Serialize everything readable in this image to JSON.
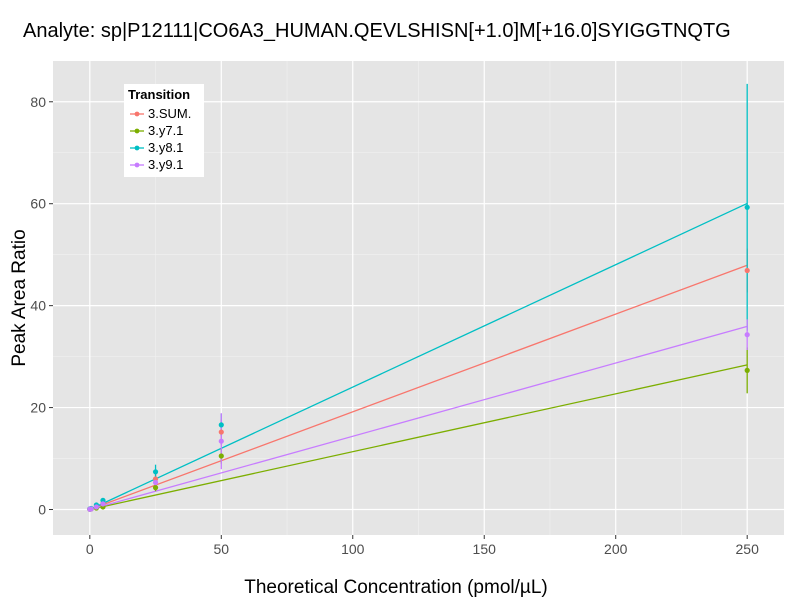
{
  "chart_data": {
    "type": "scatter",
    "title": "Analyte: sp|P12111|CO6A3_HUMAN.QEVLSHISN[+1.0]M[+16.0]SYIGGTNQTG",
    "xlabel": "Theoretical Concentration (pmol/µL)",
    "ylabel": "Peak Area Ratio",
    "xlim": [
      -14,
      264
    ],
    "ylim": [
      -5,
      88
    ],
    "x_ticks": [
      0,
      50,
      100,
      150,
      200,
      250
    ],
    "y_ticks": [
      0,
      20,
      40,
      60,
      80
    ],
    "x_tick_labels": [
      "0",
      "50",
      "100",
      "150",
      "200",
      "250"
    ],
    "y_tick_labels": [
      "0",
      "20",
      "40",
      "60",
      "80"
    ],
    "grid": true,
    "legend": {
      "title": "Transition",
      "position": "top-left"
    },
    "series": [
      {
        "name": "3.SUM.",
        "color": "#F8766D",
        "fit": {
          "slope": 0.1917,
          "intercept": 0.0,
          "x_range": [
            0,
            250
          ]
        },
        "points": [
          {
            "x": 0,
            "y": 0.1,
            "err": 0.1
          },
          {
            "x": 0.5,
            "y": 0.15,
            "err": 0.1
          },
          {
            "x": 2.5,
            "y": 0.6,
            "err": 0.2
          },
          {
            "x": 5,
            "y": 1.2,
            "err": 0.3
          },
          {
            "x": 25,
            "y": 6.0,
            "err": 1.2
          },
          {
            "x": 50,
            "y": 15.2,
            "err": 2.5
          },
          {
            "x": 250,
            "y": 46.9,
            "err": 4.3
          }
        ]
      },
      {
        "name": "3.y7.1",
        "color": "#7CAE00",
        "fit": {
          "slope": 0.1135,
          "intercept": 0.0,
          "x_range": [
            0,
            250
          ]
        },
        "points": [
          {
            "x": 0,
            "y": 0.05,
            "err": 0.1
          },
          {
            "x": 0.5,
            "y": 0.1,
            "err": 0.1
          },
          {
            "x": 2.5,
            "y": 0.3,
            "err": 0.1
          },
          {
            "x": 5,
            "y": 0.5,
            "err": 0.2
          },
          {
            "x": 25,
            "y": 4.3,
            "err": 0.7
          },
          {
            "x": 50,
            "y": 10.5,
            "err": 1.5
          },
          {
            "x": 250,
            "y": 27.3,
            "err": 4.5
          }
        ]
      },
      {
        "name": "3.y8.1",
        "color": "#00BFC4",
        "fit": {
          "slope": 0.2402,
          "intercept": 0.0,
          "x_range": [
            0,
            250
          ]
        },
        "points": [
          {
            "x": 0,
            "y": 0.1,
            "err": 0.1
          },
          {
            "x": 0.5,
            "y": 0.2,
            "err": 0.1
          },
          {
            "x": 2.5,
            "y": 0.9,
            "err": 0.3
          },
          {
            "x": 5,
            "y": 1.8,
            "err": 0.4
          },
          {
            "x": 25,
            "y": 7.4,
            "err": 1.4
          },
          {
            "x": 50,
            "y": 16.6,
            "err": 2.2
          },
          {
            "x": 250,
            "y": 59.3,
            "err": 24.2
          }
        ]
      },
      {
        "name": "3.y9.1",
        "color": "#C77CFF",
        "fit": {
          "slope": 0.1437,
          "intercept": 0.0,
          "x_range": [
            0,
            250
          ]
        },
        "points": [
          {
            "x": 0,
            "y": 0.05,
            "err": 0.1
          },
          {
            "x": 0.5,
            "y": 0.1,
            "err": 0.1
          },
          {
            "x": 2.5,
            "y": 0.5,
            "err": 0.2
          },
          {
            "x": 5,
            "y": 1.1,
            "err": 0.3
          },
          {
            "x": 25,
            "y": 5.3,
            "err": 1.1
          },
          {
            "x": 50,
            "y": 13.4,
            "err": 5.5
          },
          {
            "x": 250,
            "y": 34.3,
            "err": 3.0
          }
        ]
      }
    ]
  }
}
